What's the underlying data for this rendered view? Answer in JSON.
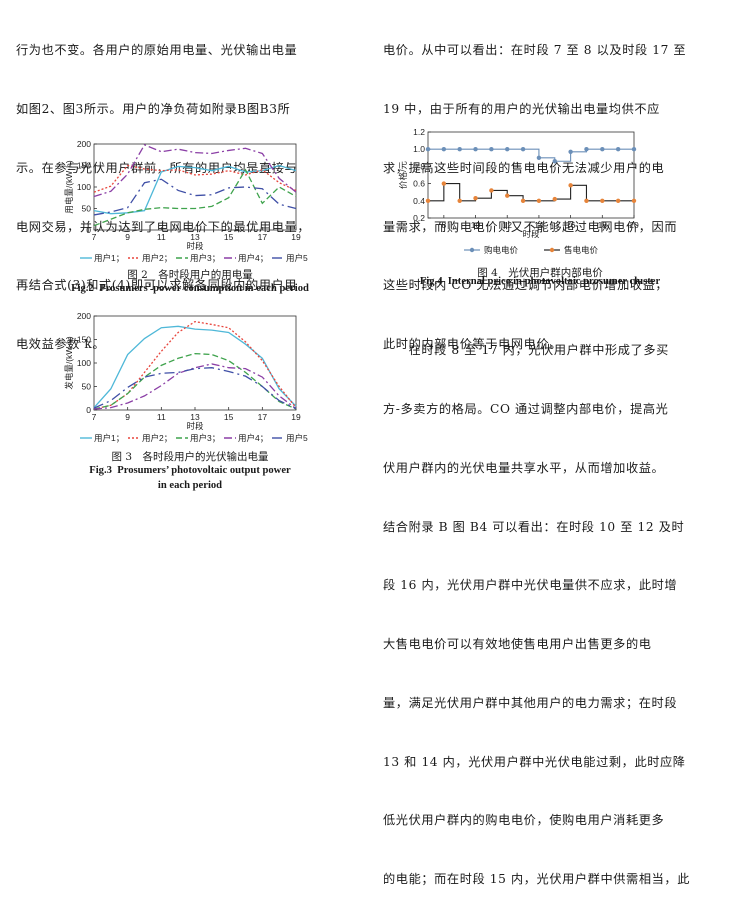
{
  "left_top_lines": [
    "行为也不变。各用户的原始用电量、光伏输出电量",
    "如图2、图3所示。用户的净负荷如附录B图B3所",
    "示。在参与光伏用户群前，所有的用户均是直接与",
    "电网交易，并认为达到了电网电价下的最优用电量，",
    "再结合式(3)和式(4)即可以求解各同段内的用户用",
    "电效益参数 k。"
  ],
  "right_top_lines": [
    "电价。从中可以看出：在时段 7 至 8 以及时段 17 至",
    "19 中，由于所有的用户的光伏输出电量均供不应",
    "求，提高这些时间段的售电电价无法减少用户的电",
    "量需求，而购电电价则又不能够超过电网电价，因而",
    "这些时段内 CO 无法通过调节内部电价增加收益，",
    "此时的内部电价等于电网电价。"
  ],
  "right_bottom_lines": [
    "　　在时段 8 至 17 内，光伏用户群中形成了多买",
    "方-多卖方的格局。CO 通过调整内部电价，提高光",
    "伏用户群内的光伏电量共享水平，从而增加收益。",
    "结合附录 B 图 B4 可以看出：在时段 10 至 12 及时",
    "段 16 内，光伏用户群中光伏电量供不应求，此时增",
    "大售电电价可以有效地使售电用户出售更多的电",
    "量，满足光伏用户群中其他用户的电力需求；在时段",
    "13 和 14 内，光伏用户群中光伏电能过剩，此时应降",
    "低光伏用户群内的购电电价，使购电用户消耗更多",
    "的电能；而在时段 15 内，光伏用户群中供需相当，此"
  ],
  "fig2": {
    "caption_cn": "图 2　各时段用户的用电量",
    "caption_en_label": "Fig.2",
    "caption_en_text": "Prosumers’ power consumption in each period",
    "chart_data": {
      "type": "line",
      "ylabel": "用电量/(kW·h)",
      "xlabel": "时段",
      "x": [
        7,
        8,
        9,
        10,
        11,
        12,
        13,
        14,
        15,
        16,
        17,
        18,
        19
      ],
      "xticks": [
        "7",
        "9",
        "11",
        "13",
        "15",
        "17",
        "19"
      ],
      "yticks": [
        "0",
        "50",
        "100",
        "150",
        "200"
      ],
      "ylim": [
        0,
        200
      ],
      "series": [
        {
          "name": "用户1",
          "color": "#4fb8d8",
          "dash": "",
          "values": [
            45,
            38,
            40,
            45,
            135,
            148,
            145,
            138,
            148,
            135,
            138,
            150,
            138
          ]
        },
        {
          "name": "用户2",
          "color": "#e8453c",
          "dash": "2,2",
          "values": [
            88,
            102,
            150,
            142,
            138,
            140,
            128,
            130,
            138,
            128,
            140,
            110,
            92
          ]
        },
        {
          "name": "用户3",
          "color": "#3fa34d",
          "dash": "6,3",
          "values": [
            10,
            25,
            40,
            48,
            52,
            50,
            50,
            55,
            75,
            140,
            62,
            100,
            78
          ]
        },
        {
          "name": "用户4",
          "color": "#8b3fa6",
          "dash": "8,3,2,3",
          "values": [
            78,
            90,
            130,
            198,
            182,
            188,
            180,
            178,
            185,
            190,
            178,
            120,
            88
          ]
        },
        {
          "name": "用户5",
          "color": "#3f4fa6",
          "dash": "10,4,2,4",
          "values": [
            35,
            42,
            52,
            110,
            118,
            92,
            80,
            82,
            98,
            100,
            96,
            60,
            50
          ]
        }
      ],
      "legend": [
        "用户1",
        "用户2",
        "用户3",
        "用户4",
        "用户5"
      ]
    }
  },
  "fig3": {
    "caption_cn": "图 3　各时段用户的光伏输出电量",
    "caption_en_label": "Fig.3",
    "caption_en_text": "Prosumers’ photovoltaic output power",
    "caption_en_text2": "in each period",
    "chart_data": {
      "type": "line",
      "ylabel": "发电量/(kW·h)",
      "xlabel": "时段",
      "x": [
        7,
        8,
        9,
        10,
        11,
        12,
        13,
        14,
        15,
        16,
        17,
        18,
        19
      ],
      "xticks": [
        "7",
        "9",
        "11",
        "13",
        "15",
        "17",
        "19"
      ],
      "yticks": [
        "0",
        "50",
        "100",
        "150",
        "200"
      ],
      "ylim": [
        0,
        200
      ],
      "series": [
        {
          "name": "用户1",
          "color": "#4fb8d8",
          "dash": "",
          "values": [
            5,
            45,
            118,
            152,
            175,
            178,
            172,
            170,
            165,
            140,
            110,
            45,
            8
          ]
        },
        {
          "name": "用户2",
          "color": "#e8453c",
          "dash": "2,2",
          "values": [
            2,
            10,
            35,
            80,
            125,
            165,
            188,
            182,
            175,
            145,
            105,
            50,
            5
          ]
        },
        {
          "name": "用户3",
          "color": "#3fa34d",
          "dash": "6,3",
          "values": [
            2,
            10,
            35,
            70,
            95,
            110,
            120,
            118,
            105,
            80,
            50,
            18,
            2
          ]
        },
        {
          "name": "用户4",
          "color": "#8b3fa6",
          "dash": "8,3,2,3",
          "values": [
            2,
            5,
            15,
            30,
            52,
            78,
            90,
            98,
            90,
            88,
            70,
            30,
            3
          ]
        },
        {
          "name": "用户5",
          "color": "#3f4fa6",
          "dash": "10,4,2,4",
          "values": [
            4,
            20,
            48,
            70,
            78,
            80,
            88,
            90,
            82,
            72,
            50,
            20,
            3
          ]
        }
      ],
      "legend": [
        "用户1",
        "用户2",
        "用户3",
        "用户4",
        "用户5"
      ]
    }
  },
  "fig4": {
    "caption_cn": "图 4　光伏用户群内部电价",
    "caption_en_label": "Fig.4",
    "caption_en_text": "Internal price in photovoltaic prosumer cluster",
    "chart_data": {
      "type": "line",
      "ylabel": "价格/元",
      "xlabel": "时段",
      "x": [
        7,
        8,
        9,
        10,
        11,
        12,
        13,
        14,
        15,
        16,
        17,
        18,
        19,
        20
      ],
      "xticks": [
        "8",
        "10",
        "12",
        "14",
        "16",
        "18",
        "20"
      ],
      "yticks": [
        "0.2",
        "0.4",
        "0.6",
        "0.8",
        "1.0",
        "1.2"
      ],
      "ylim": [
        0.2,
        1.2
      ],
      "series": [
        {
          "name": "购电电价",
          "color": "#6b8fb8",
          "marker": "#6b8fb8",
          "values": [
            1.0,
            1.0,
            1.0,
            1.0,
            1.0,
            1.0,
            1.0,
            0.9,
            0.86,
            0.97,
            1.0,
            1.0,
            1.0,
            1.0
          ]
        },
        {
          "name": "售电电价",
          "color": "#222222",
          "marker": "#e6843a",
          "values": [
            0.4,
            0.6,
            0.4,
            0.43,
            0.52,
            0.46,
            0.4,
            0.4,
            0.42,
            0.58,
            0.4,
            0.4,
            0.4,
            0.4
          ]
        }
      ],
      "legend": [
        "购电电价",
        "售电电价"
      ]
    }
  }
}
